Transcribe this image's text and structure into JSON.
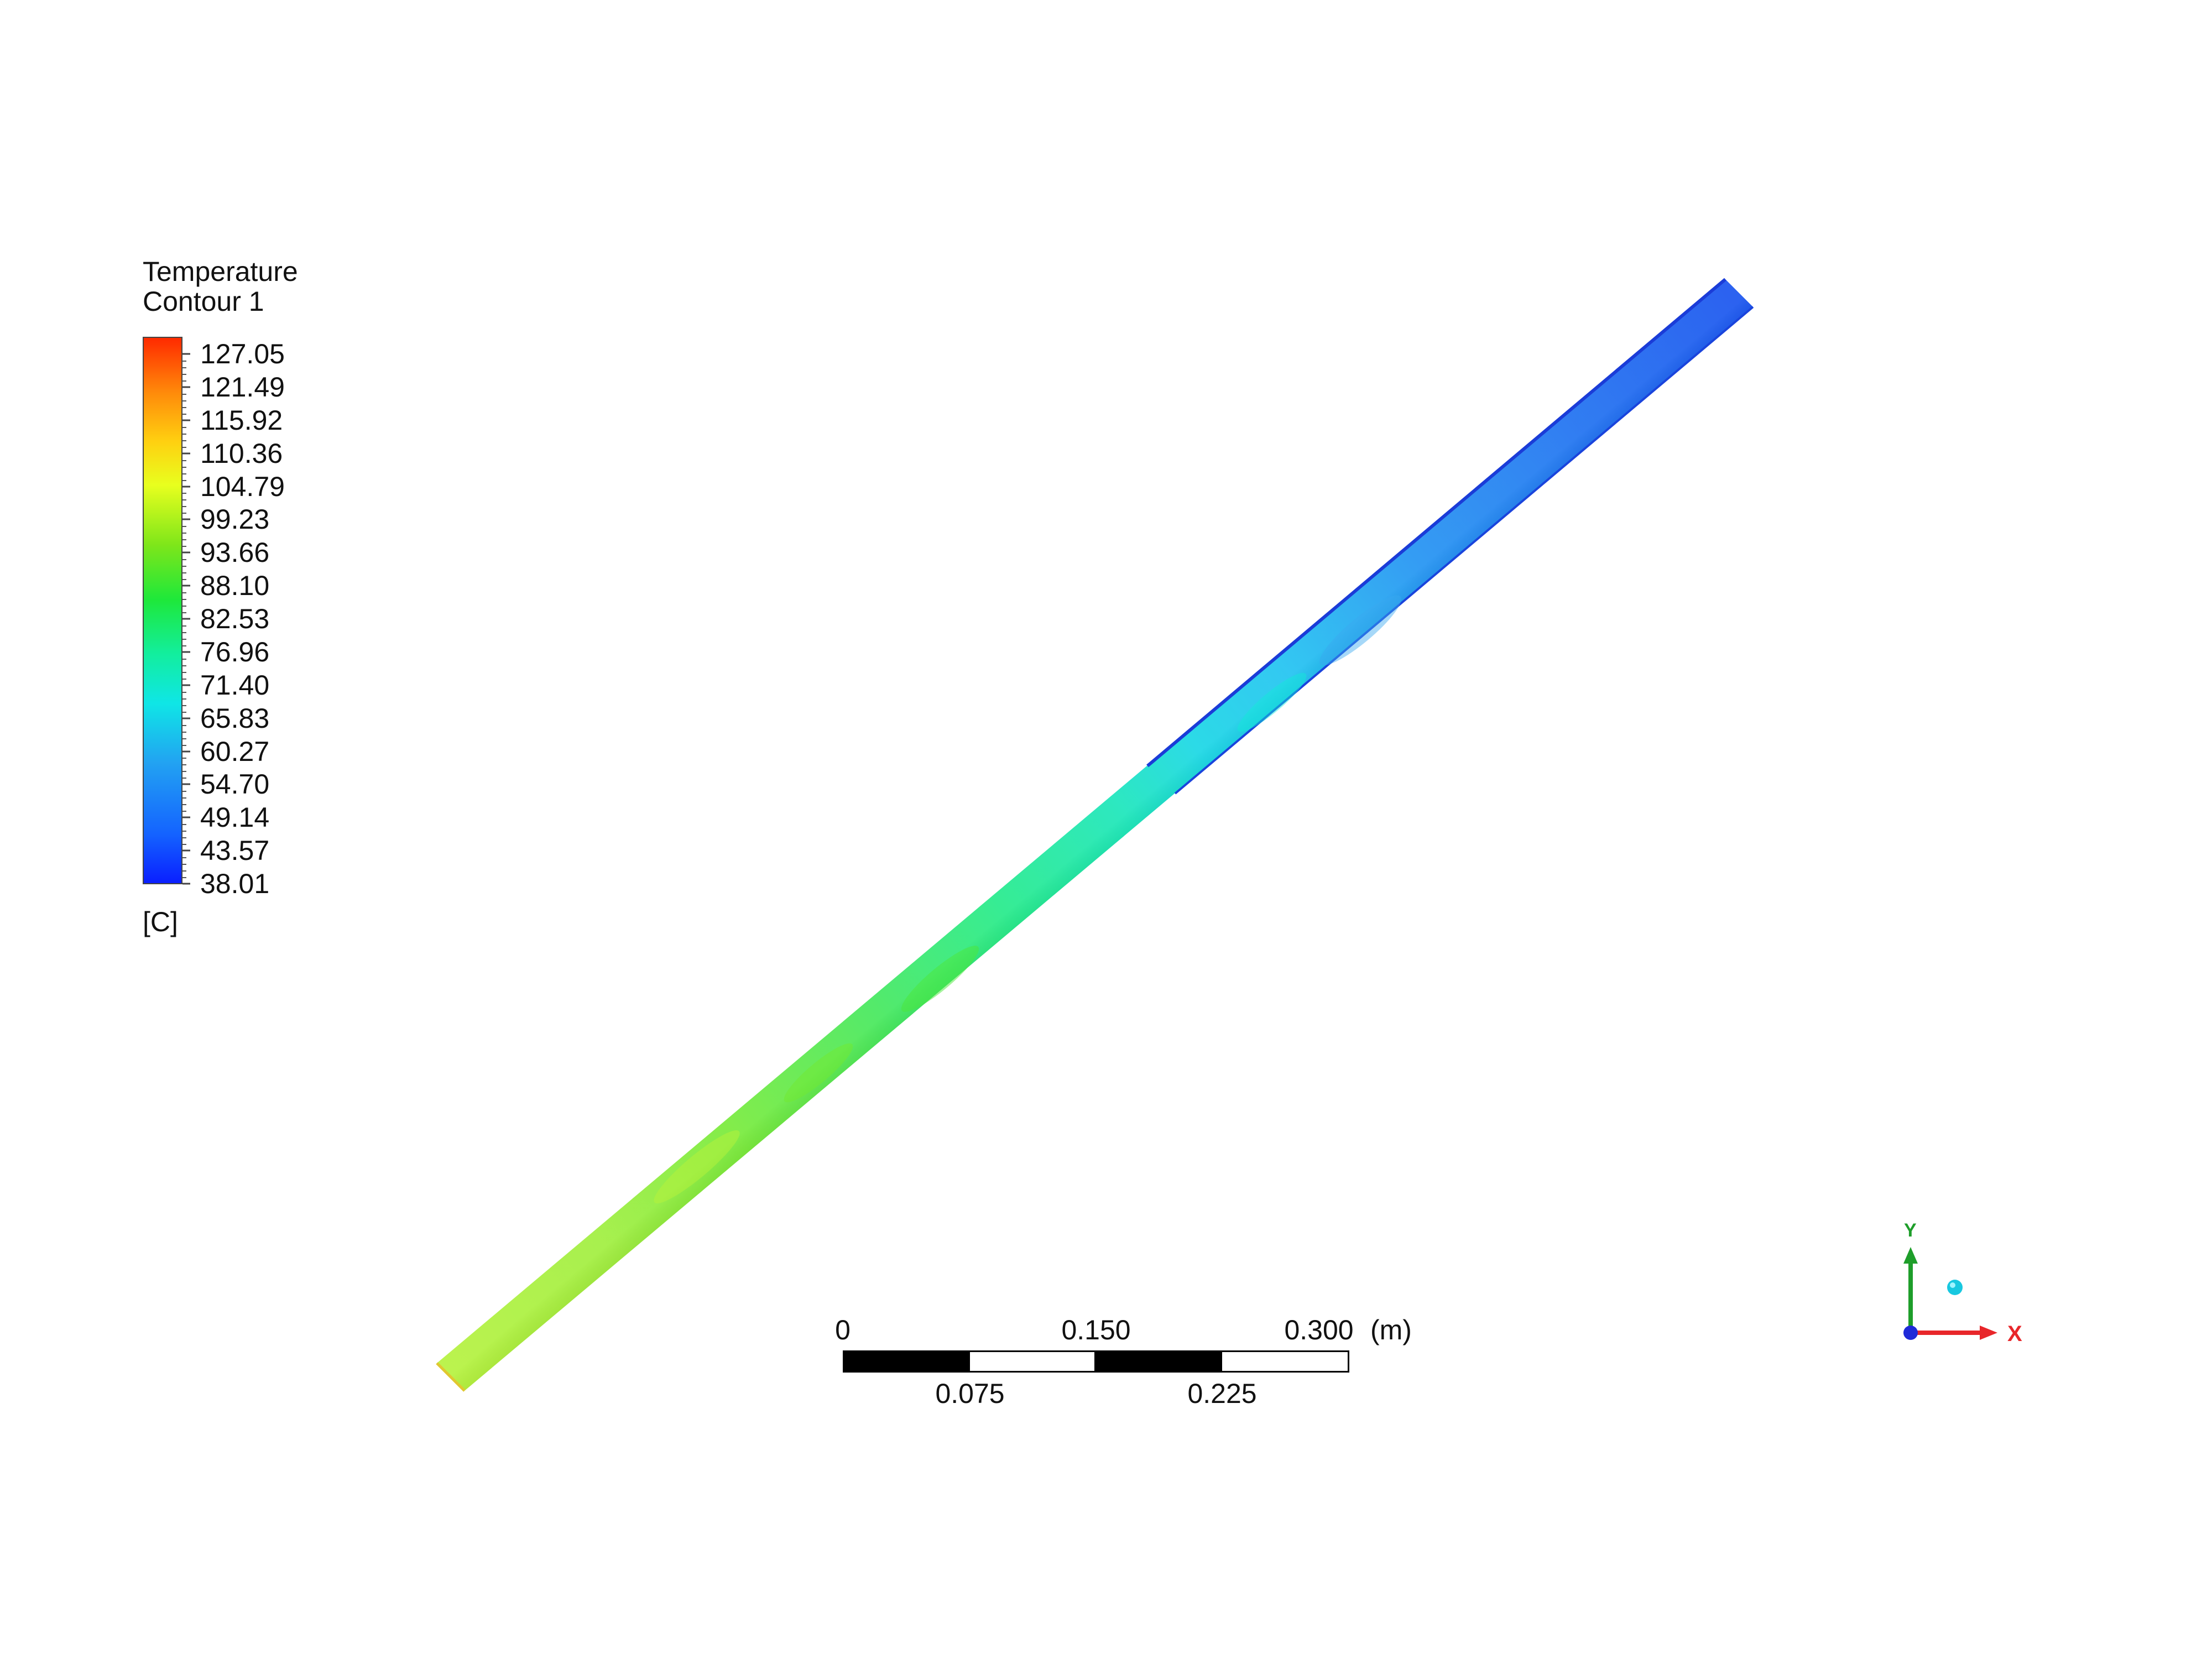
{
  "legend": {
    "title_line1": "Temperature",
    "title_line2": "Contour 1",
    "unit": "[C]",
    "levels": [
      "127.05",
      "121.49",
      "115.92",
      "110.36",
      "104.79",
      "99.23",
      "93.66",
      "88.10",
      "82.53",
      "76.96",
      "71.40",
      "65.83",
      "60.27",
      "54.70",
      "49.14",
      "43.57",
      "38.01"
    ],
    "colors": {
      "max": "#ff2a00",
      "orange": "#ff8a0a",
      "yellow": "#e8ff1e",
      "green": "#1ee83a",
      "cyan": "#0fe6e6",
      "blue": "#1463ff",
      "min": "#0a1fff"
    }
  },
  "scale_bar": {
    "top_labels": [
      "0",
      "0.150",
      "0.300"
    ],
    "bottom_labels": [
      "0.075",
      "0.225"
    ],
    "unit": "(m)"
  },
  "triad": {
    "x_label": "X",
    "y_label": "Y",
    "x_color": "#e8262a",
    "y_color": "#1e9e2a",
    "z_color": "#1f2ad8"
  }
}
